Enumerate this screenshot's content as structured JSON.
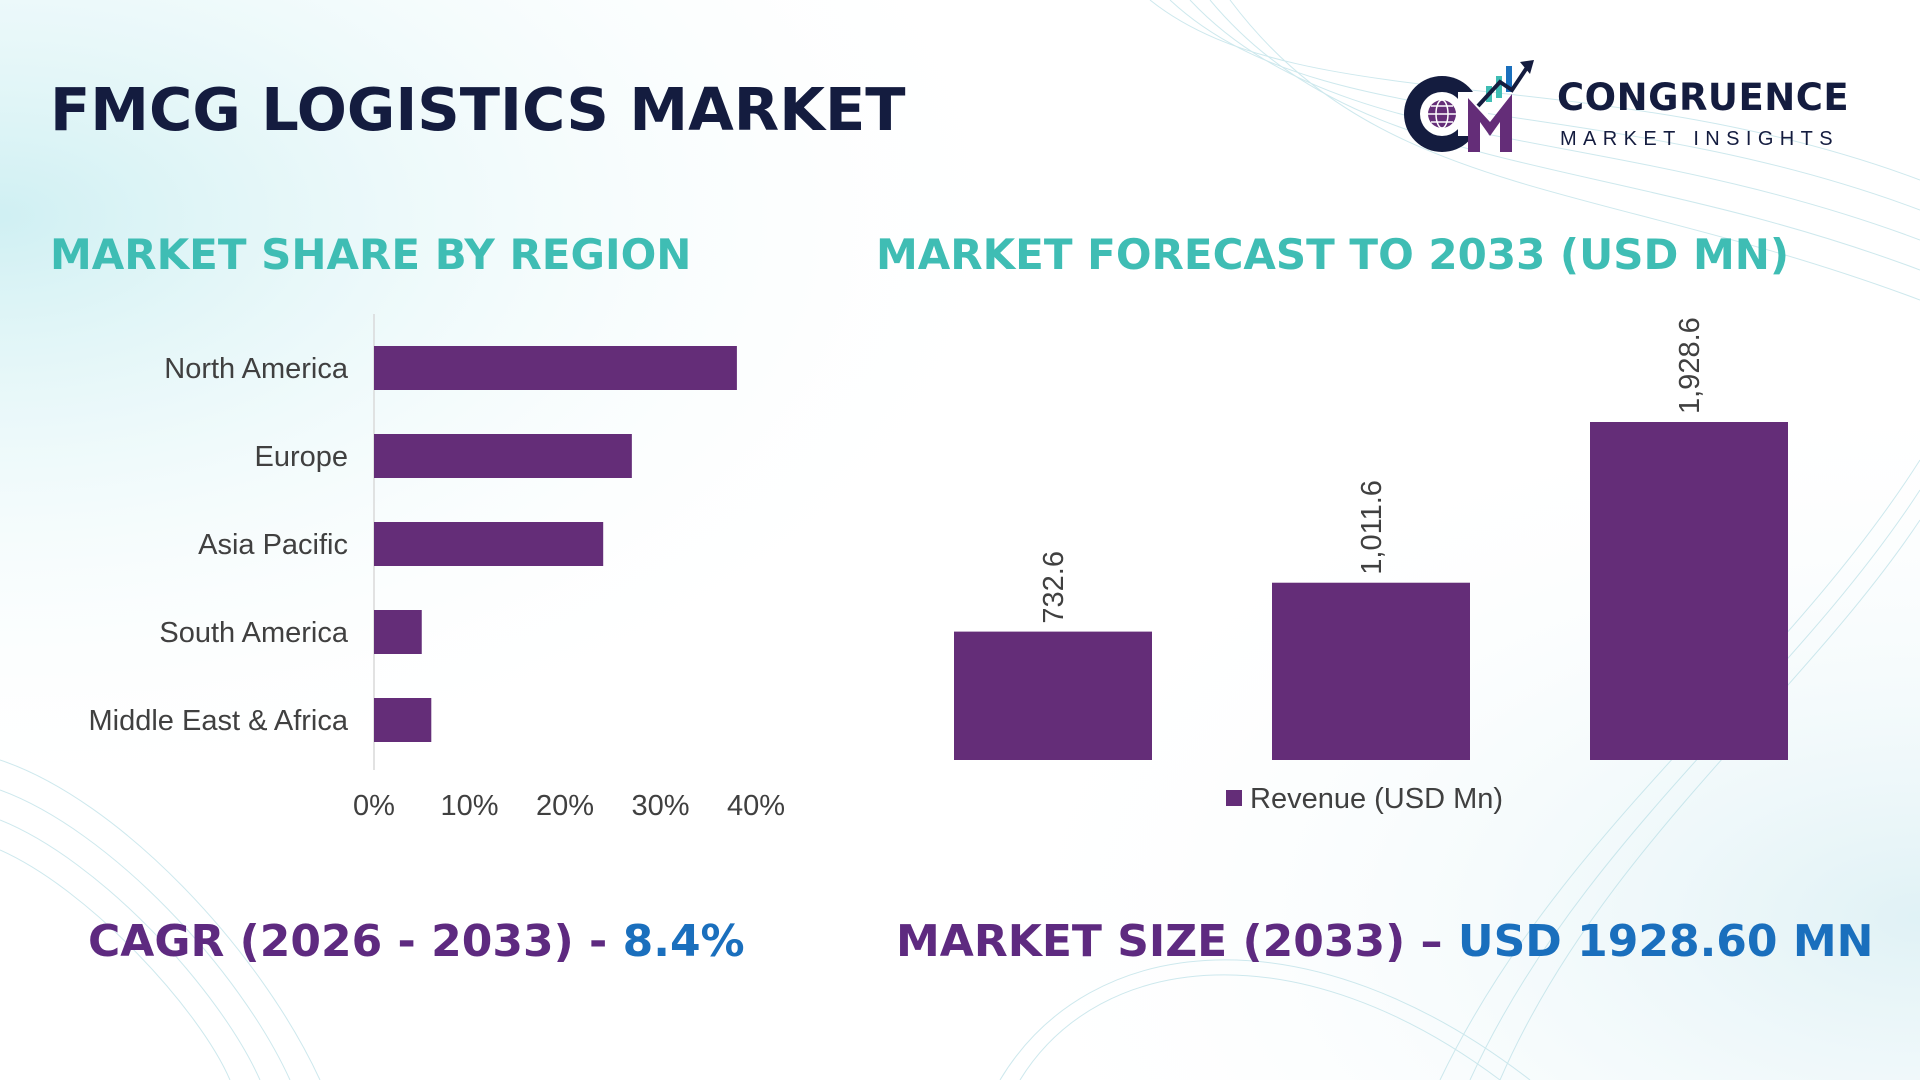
{
  "title": "FMCG LOGISTICS MARKET",
  "logo": {
    "name": "CONGRUENCE",
    "tagline": "MARKET INSIGHTS"
  },
  "colors": {
    "title": "#141c3f",
    "section_title": "#3fbdb4",
    "bar": "#642d78",
    "footer_label": "#5e2a80",
    "footer_value": "#1a6fbd"
  },
  "chart_data": [
    {
      "type": "bar",
      "orientation": "horizontal",
      "title": "MARKET SHARE BY REGION",
      "categories": [
        "North America",
        "Europe",
        "Asia Pacific",
        "South America",
        "Middle East & Africa"
      ],
      "values": [
        38,
        27,
        24,
        5,
        6
      ],
      "xlim": [
        0,
        40
      ],
      "xticks": [
        0,
        10,
        20,
        30,
        40
      ],
      "xtick_labels": [
        "0%",
        "10%",
        "20%",
        "30%",
        "40%"
      ],
      "grid": false
    },
    {
      "type": "bar",
      "title": "MARKET FORECAST TO 2033 (USD MN)",
      "categories": [
        "",
        "",
        ""
      ],
      "series": [
        {
          "name": "Revenue (USD Mn)",
          "values": [
            732.6,
            1011.6,
            1928.6
          ]
        }
      ],
      "data_labels": [
        "732.6",
        "1,011.6",
        "1,928.6"
      ],
      "ylim": [
        0,
        1928.6
      ],
      "legend": "bottom",
      "grid": false
    }
  ],
  "footer": {
    "cagr_label": "CAGR (2026 - 2033) - ",
    "cagr_value": "8.4%",
    "size_label": "MARKET SIZE (2033) – ",
    "size_value": "USD 1928.60 MN"
  }
}
